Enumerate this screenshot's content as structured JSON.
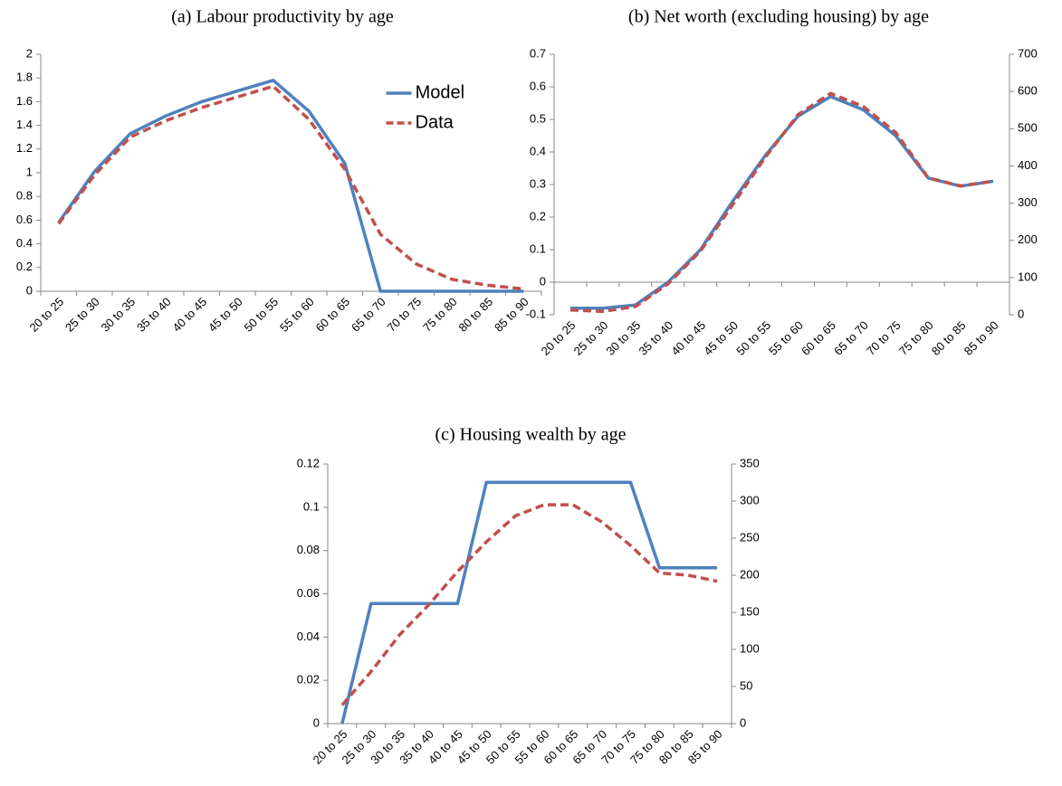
{
  "chart_data": [
    {
      "type": "line",
      "title": "(a) Labour productivity by age",
      "categories": [
        "20 to 25",
        "25 to 30",
        "30 to 35",
        "35 to 40",
        "40 to 45",
        "45 to 50",
        "50 to 55",
        "55 to 60",
        "60 to 65",
        "65 to 70",
        "70 to 75",
        "75 to 80",
        "80 to 85",
        "85 to 90"
      ],
      "series": [
        {
          "name": "Model",
          "color": "#4f81bd",
          "linestyle": "solid",
          "values": [
            0.58,
            1.01,
            1.33,
            1.48,
            1.6,
            1.69,
            1.78,
            1.52,
            1.08,
            0,
            0,
            0,
            0,
            0
          ]
        },
        {
          "name": "Data",
          "color": "#c0504d",
          "linestyle": "dashed",
          "values": [
            0.57,
            0.98,
            1.3,
            1.44,
            1.55,
            1.64,
            1.73,
            1.45,
            1.03,
            0.48,
            0.23,
            0.1,
            0.05,
            0.02
          ]
        }
      ],
      "ylim": [
        0,
        2
      ],
      "yticks": [
        0,
        0.2,
        0.4,
        0.6,
        0.8,
        1,
        1.2,
        1.4,
        1.6,
        1.8,
        2
      ],
      "legend": "upper right"
    },
    {
      "type": "line",
      "title": "(b) Net worth (excluding housing) by age",
      "categories": [
        "20 to 25",
        "25 to 30",
        "30 to 35",
        "35 to 40",
        "40 to 45",
        "45 to 50",
        "50 to 55",
        "55 to 60",
        "60 to 65",
        "65 to 70",
        "70 to 75",
        "75 to 80",
        "80 to 85",
        "85 to 90"
      ],
      "series": [
        {
          "color": "#4f81bd",
          "linestyle": "solid",
          "axis": "y",
          "values": [
            -0.08,
            -0.08,
            -0.07,
            0,
            0.1,
            0.25,
            0.39,
            0.51,
            0.57,
            0.53,
            0.45,
            0.32,
            0.295,
            0.31
          ]
        },
        {
          "color": "#c0504d",
          "linestyle": "dashed",
          "axis": "y2",
          "values": [
            13,
            9,
            22,
            83,
            171,
            297,
            424,
            538,
            595,
            560,
            490,
            368,
            346,
            359
          ]
        }
      ],
      "ylim": [
        -0.1,
        0.7
      ],
      "yticks": [
        -0.1,
        0,
        0.1,
        0.2,
        0.3,
        0.4,
        0.5,
        0.6,
        0.7
      ],
      "y2lim": [
        0,
        700
      ],
      "y2ticks": [
        0,
        100,
        200,
        300,
        400,
        500,
        600,
        700
      ]
    },
    {
      "type": "line",
      "title": "(c) Housing wealth by age",
      "categories": [
        "20 to 25",
        "25 to 30",
        "30 to 35",
        "35 to 40",
        "40 to 45",
        "45 to 50",
        "50 to 55",
        "55 to 60",
        "60 to 65",
        "65 to 70",
        "70 to 75",
        "75 to 80",
        "80 to 85",
        "85 to 90"
      ],
      "series": [
        {
          "color": "#4f81bd",
          "linestyle": "solid",
          "axis": "y",
          "values": [
            0,
            0.0555,
            0.0555,
            0.0555,
            0.0555,
            0.1115,
            0.1115,
            0.1115,
            0.1115,
            0.1115,
            0.1115,
            0.072,
            0.072,
            0.072
          ]
        },
        {
          "color": "#c0504d",
          "linestyle": "dashed",
          "axis": "y2",
          "values": [
            25,
            70,
            120,
            160,
            205,
            245,
            280,
            295,
            295,
            272,
            240,
            203,
            200,
            192
          ]
        }
      ],
      "ylim": [
        0,
        0.12
      ],
      "yticks": [
        0,
        0.02,
        0.04,
        0.06,
        0.08,
        0.1,
        0.12
      ],
      "y2lim": [
        0,
        350
      ],
      "y2ticks": [
        0,
        50,
        100,
        150,
        200,
        250,
        300,
        350
      ]
    }
  ]
}
